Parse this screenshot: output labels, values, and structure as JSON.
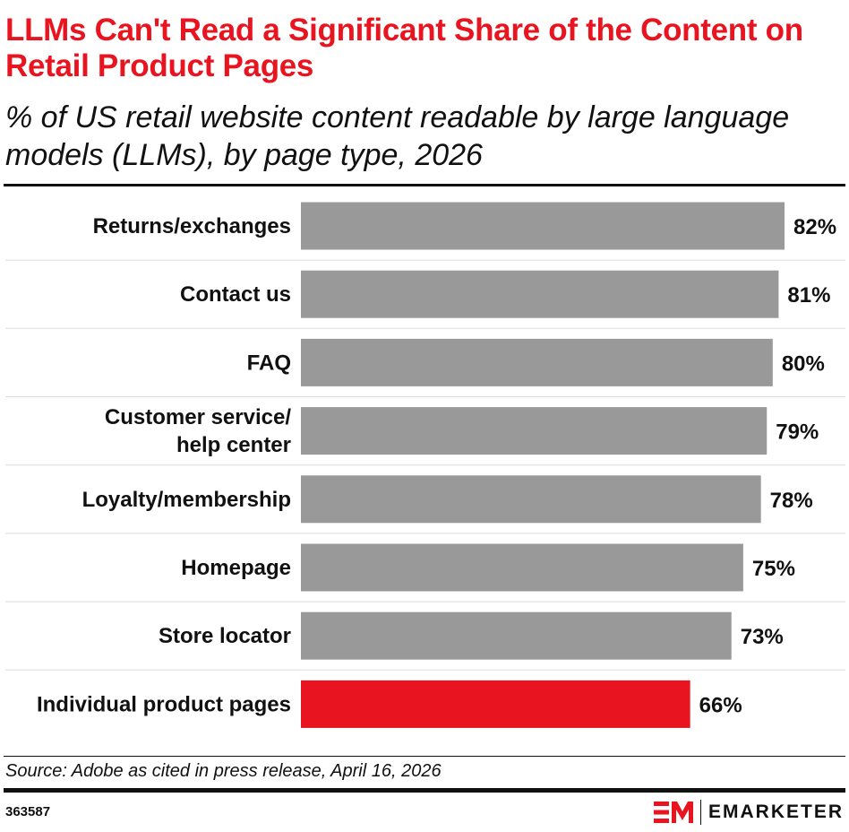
{
  "header": {
    "title": "LLMs Can't Read a Significant Share of the Content on Retail Product Pages",
    "subtitle": "% of US retail website content readable by large language models (LLMs), by page type, 2026"
  },
  "footer": {
    "source": "Source: Adobe as cited in press release, April 16, 2026",
    "chart_id": "363587",
    "brand_name": "EMARKETER"
  },
  "colors": {
    "bar_default": "#999999",
    "bar_highlight": "#e8141f",
    "title": "#e8141f"
  },
  "chart_data": {
    "type": "bar",
    "orientation": "horizontal",
    "title": "LLMs Can't Read a Significant Share of the Content on Retail Product Pages",
    "subtitle": "% of US retail website content readable by large language models (LLMs), by page type, 2026",
    "categories": [
      [
        "Returns/exchanges"
      ],
      [
        "Contact us"
      ],
      [
        "FAQ"
      ],
      [
        "Customer service/",
        "help center"
      ],
      [
        "Loyalty/membership"
      ],
      [
        "Homepage"
      ],
      [
        "Store locator"
      ],
      [
        "Individual product pages"
      ]
    ],
    "values": [
      82,
      81,
      80,
      79,
      78,
      75,
      73,
      66
    ],
    "value_labels": [
      "82%",
      "81%",
      "80%",
      "79%",
      "78%",
      "75%",
      "73%",
      "66%"
    ],
    "highlight_index": 7,
    "unit": "%",
    "xlim": [
      0,
      82
    ],
    "grid": false,
    "legend": "none"
  }
}
